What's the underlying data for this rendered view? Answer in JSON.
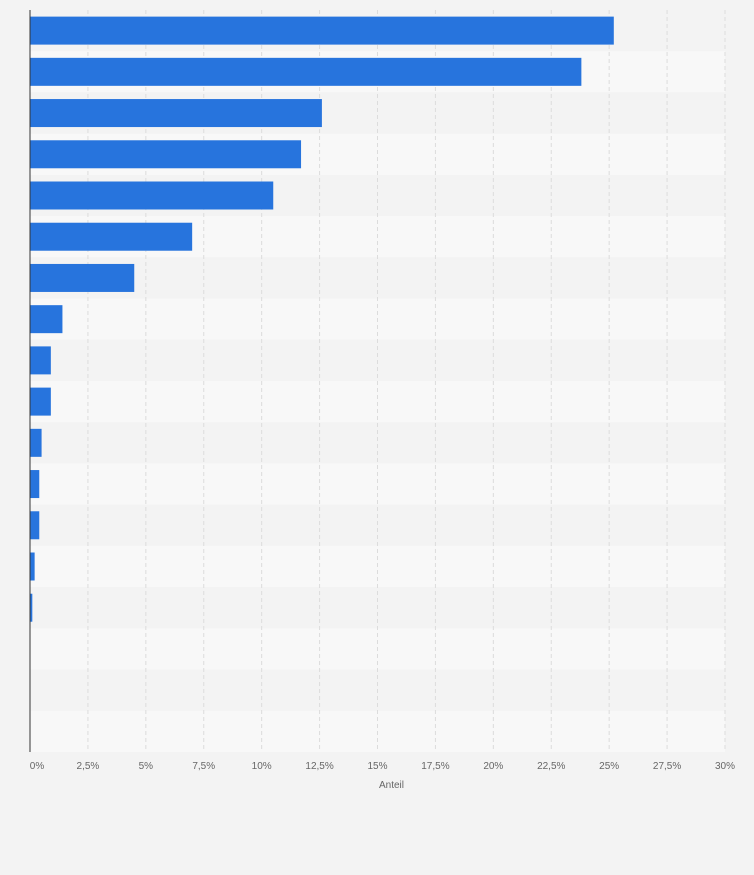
{
  "chart_data": {
    "type": "bar",
    "orientation": "horizontal",
    "categories": [
      "",
      "",
      "",
      "",
      "",
      "",
      "",
      "",
      "",
      "",
      "",
      "",
      "",
      "",
      "",
      "",
      "",
      ""
    ],
    "values": [
      25.2,
      23.8,
      12.6,
      11.7,
      10.5,
      7.0,
      4.5,
      1.4,
      0.9,
      0.9,
      0.5,
      0.4,
      0.4,
      0.2,
      0.1,
      0,
      0,
      0
    ],
    "xlabel": "Anteil",
    "xlim": [
      0,
      30
    ],
    "ticks": [
      0,
      2.5,
      5,
      7.5,
      10,
      12.5,
      15,
      17.5,
      20,
      22.5,
      25,
      27.5,
      30
    ],
    "tick_labels": [
      "0%",
      "2,5%",
      "5%",
      "7,5%",
      "10%",
      "12,5%",
      "15%",
      "17,5%",
      "20%",
      "22,5%",
      "25%",
      "27,5%",
      "30%"
    ],
    "grid": true,
    "bar_color": "#2774dd"
  }
}
